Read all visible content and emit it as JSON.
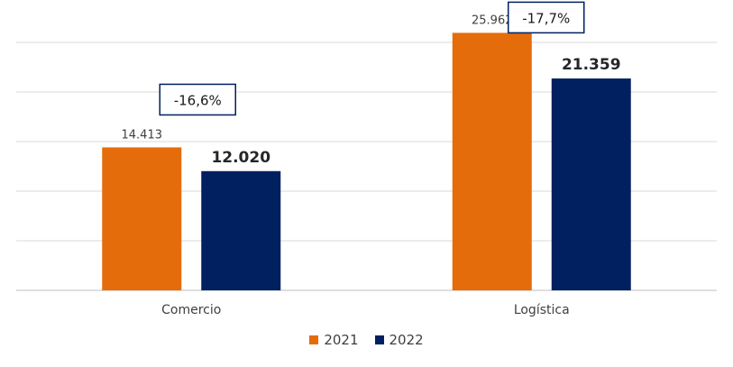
{
  "chart_data": {
    "type": "bar",
    "categories": [
      "Comercio",
      "Logística"
    ],
    "series": [
      {
        "name": "2021",
        "values": [
          14413,
          25962
        ],
        "labels": [
          "14.413",
          "25.962"
        ],
        "color": "#E46C0A",
        "label_bold": false
      },
      {
        "name": "2022",
        "values": [
          12020,
          21359
        ],
        "labels": [
          "12.020",
          "21.359"
        ],
        "color": "#002060",
        "label_bold": true
      }
    ],
    "annotations": [
      "-16,6%",
      "-17,7%"
    ],
    "ylim": [
      0,
      26000
    ],
    "grid": true,
    "legend_position": "bottom",
    "title": "",
    "xlabel": "",
    "ylabel": ""
  },
  "legend": [
    {
      "label": "2021",
      "color": "#E46C0A"
    },
    {
      "label": "2022",
      "color": "#002060"
    }
  ]
}
